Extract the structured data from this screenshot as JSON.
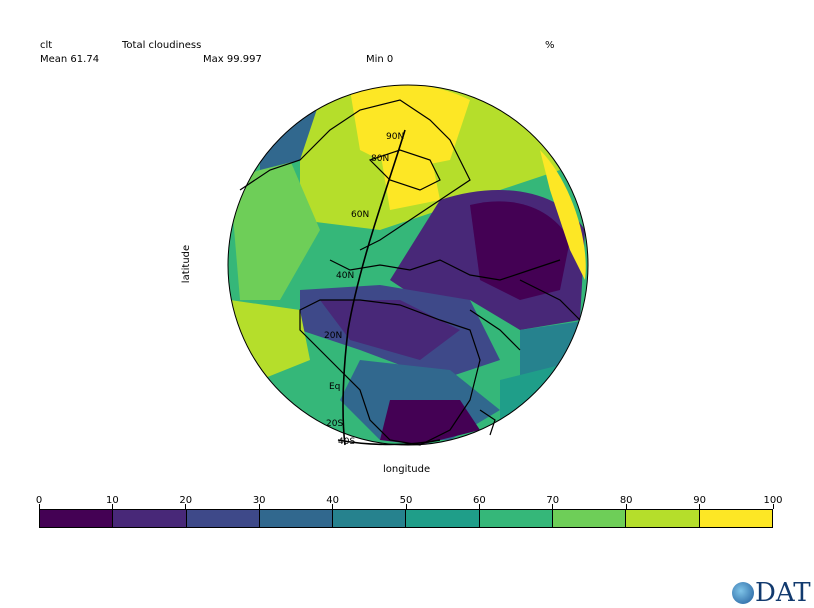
{
  "header": {
    "variable": "clt",
    "long_name": "Total cloudiness",
    "units": "%",
    "mean": "Mean 61.74",
    "max": "Max 99.997",
    "min": "Min 0"
  },
  "axes": {
    "ylabel": "latitude",
    "xlabel": "longitude"
  },
  "lat_labels": [
    "90N",
    "80N",
    "60N",
    "40N",
    "20N",
    "Eq",
    "20S",
    "40S"
  ],
  "colorbar": {
    "ticks": [
      "0",
      "10",
      "20",
      "30",
      "40",
      "50",
      "60",
      "70",
      "80",
      "90",
      "100"
    ],
    "colors": [
      "#440154",
      "#482878",
      "#3e4989",
      "#31688e",
      "#26828e",
      "#1f9e89",
      "#35b779",
      "#6ece58",
      "#b5de2b",
      "#fde725"
    ]
  },
  "logo": {
    "text": "DAT"
  },
  "chart_data": {
    "type": "heatmap",
    "projection": "orthographic",
    "title": "Total cloudiness",
    "variable": "clt",
    "units": "%",
    "stats": {
      "mean": 61.74,
      "max": 99.997,
      "min": 0
    },
    "xlabel": "longitude",
    "ylabel": "latitude",
    "levels": [
      0,
      10,
      20,
      30,
      40,
      50,
      60,
      70,
      80,
      90,
      100
    ]
  }
}
